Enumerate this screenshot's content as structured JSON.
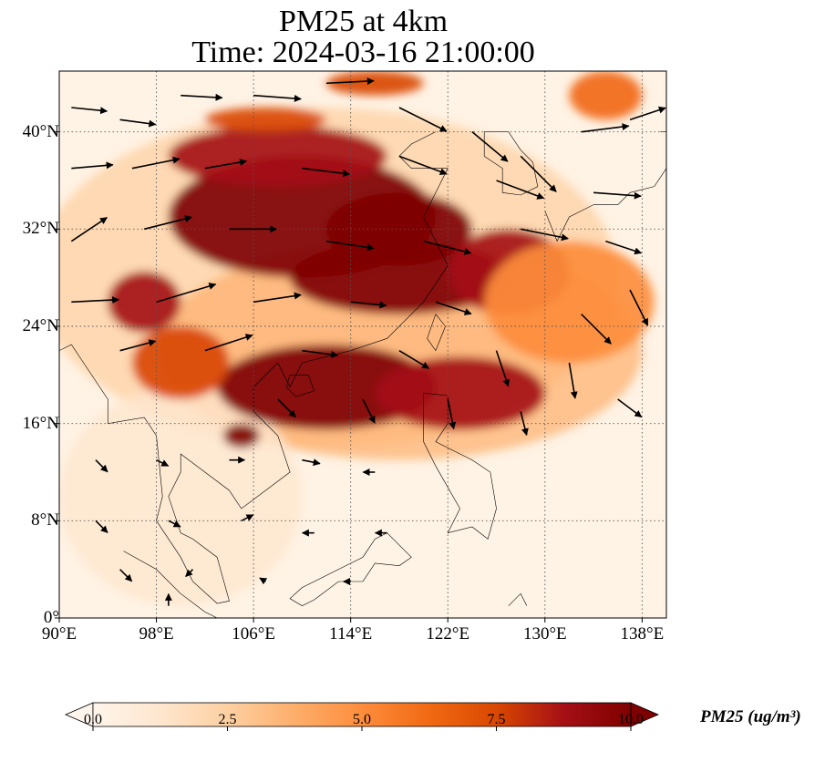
{
  "figure": {
    "title_line1": "PM25 at 4km",
    "title_line2": "Time: 2024-03-16 21:00:00"
  },
  "map": {
    "lon_range": [
      90,
      140
    ],
    "lat_range": [
      0,
      45
    ],
    "lon_ticks": [
      {
        "value": 90,
        "label": "90°E"
      },
      {
        "value": 98,
        "label": "98°E"
      },
      {
        "value": 106,
        "label": "106°E"
      },
      {
        "value": 114,
        "label": "114°E"
      },
      {
        "value": 122,
        "label": "122°E"
      },
      {
        "value": 130,
        "label": "130°E"
      },
      {
        "value": 138,
        "label": "138°E"
      }
    ],
    "lat_ticks": [
      {
        "value": 0,
        "label": "0°"
      },
      {
        "value": 8,
        "label": "8°N"
      },
      {
        "value": 16,
        "label": "16°N"
      },
      {
        "value": 24,
        "label": "24°N"
      },
      {
        "value": 32,
        "label": "32°N"
      },
      {
        "value": 40,
        "label": "40°N"
      }
    ],
    "gridlines": "dotted",
    "field": "PM25",
    "pollution_blobs": [
      {
        "lon": 110,
        "lat": 33,
        "rx": 11,
        "ry": 5,
        "level": 10
      },
      {
        "lon": 118,
        "lat": 32,
        "rx": 6,
        "ry": 3,
        "level": 10
      },
      {
        "lon": 108,
        "lat": 38,
        "rx": 9,
        "ry": 2.5,
        "level": 9
      },
      {
        "lon": 118,
        "lat": 28,
        "rx": 9,
        "ry": 3,
        "level": 10
      },
      {
        "lon": 127,
        "lat": 28.5,
        "rx": 5,
        "ry": 3.5,
        "level": 9
      },
      {
        "lon": 112,
        "lat": 19,
        "rx": 9,
        "ry": 3.5,
        "level": 10
      },
      {
        "lon": 123,
        "lat": 18.5,
        "rx": 7,
        "ry": 3,
        "level": 9
      },
      {
        "lon": 97,
        "lat": 26,
        "rx": 3,
        "ry": 2.5,
        "level": 9
      },
      {
        "lon": 105,
        "lat": 15,
        "rx": 1.5,
        "ry": 1,
        "level": 10
      },
      {
        "lon": 100,
        "lat": 21,
        "rx": 4,
        "ry": 3,
        "level": 8
      },
      {
        "lon": 132,
        "lat": 26,
        "rx": 7,
        "ry": 5,
        "level": 5
      },
      {
        "lon": 107,
        "lat": 41,
        "rx": 5,
        "ry": 1,
        "level": 8
      },
      {
        "lon": 116,
        "lat": 44,
        "rx": 4,
        "ry": 1,
        "level": 7
      },
      {
        "lon": 135,
        "lat": 43,
        "rx": 3,
        "ry": 2,
        "level": 6
      }
    ],
    "wind_vectors": [
      {
        "lon": 91,
        "lat": 42,
        "u": 3,
        "v": -0.3
      },
      {
        "lon": 95,
        "lat": 41,
        "u": 3,
        "v": -0.4
      },
      {
        "lon": 100,
        "lat": 43,
        "u": 3.5,
        "v": -0.2
      },
      {
        "lon": 106,
        "lat": 43,
        "u": 4,
        "v": -0.3
      },
      {
        "lon": 112,
        "lat": 44,
        "u": 4,
        "v": 0.2
      },
      {
        "lon": 118,
        "lat": 42,
        "u": 4,
        "v": -2
      },
      {
        "lon": 124,
        "lat": 40,
        "u": 3,
        "v": -2.5
      },
      {
        "lon": 128,
        "lat": 38,
        "u": 3,
        "v": -3
      },
      {
        "lon": 133,
        "lat": 40,
        "u": 4,
        "v": 0.5
      },
      {
        "lon": 137,
        "lat": 41,
        "u": 3,
        "v": 1
      },
      {
        "lon": 91,
        "lat": 37,
        "u": 3.5,
        "v": 0.3
      },
      {
        "lon": 96,
        "lat": 37,
        "u": 4,
        "v": 0.8
      },
      {
        "lon": 102,
        "lat": 37,
        "u": 3.5,
        "v": 0.6
      },
      {
        "lon": 110,
        "lat": 37,
        "u": 4,
        "v": -0.5
      },
      {
        "lon": 118,
        "lat": 38,
        "u": 4,
        "v": -1.5
      },
      {
        "lon": 126,
        "lat": 36,
        "u": 4,
        "v": -1.5
      },
      {
        "lon": 134,
        "lat": 35,
        "u": 4,
        "v": -0.3
      },
      {
        "lon": 91,
        "lat": 31,
        "u": 3,
        "v": 2
      },
      {
        "lon": 97,
        "lat": 32,
        "u": 4,
        "v": 1
      },
      {
        "lon": 104,
        "lat": 32,
        "u": 4,
        "v": 0
      },
      {
        "lon": 112,
        "lat": 31,
        "u": 4,
        "v": -0.6
      },
      {
        "lon": 120,
        "lat": 31,
        "u": 4,
        "v": -1
      },
      {
        "lon": 128,
        "lat": 32,
        "u": 4,
        "v": -0.8
      },
      {
        "lon": 135,
        "lat": 31,
        "u": 3,
        "v": -1
      },
      {
        "lon": 91,
        "lat": 26,
        "u": 4,
        "v": 0.2
      },
      {
        "lon": 98,
        "lat": 26,
        "u": 5,
        "v": 1.5
      },
      {
        "lon": 106,
        "lat": 26,
        "u": 4,
        "v": 0.6
      },
      {
        "lon": 114,
        "lat": 26,
        "u": 3,
        "v": -0.3
      },
      {
        "lon": 121,
        "lat": 26,
        "u": 3,
        "v": -1
      },
      {
        "lon": 133,
        "lat": 25,
        "u": 2.5,
        "v": -2.5
      },
      {
        "lon": 137,
        "lat": 27,
        "u": 1.5,
        "v": -3
      },
      {
        "lon": 95,
        "lat": 22,
        "u": 3,
        "v": 0.8
      },
      {
        "lon": 102,
        "lat": 22,
        "u": 4,
        "v": 1.3
      },
      {
        "lon": 110,
        "lat": 22,
        "u": 3,
        "v": -0.4
      },
      {
        "lon": 118,
        "lat": 22,
        "u": 2.5,
        "v": -1.5
      },
      {
        "lon": 126,
        "lat": 22,
        "u": 1,
        "v": -3
      },
      {
        "lon": 132,
        "lat": 21,
        "u": 0.5,
        "v": -3
      },
      {
        "lon": 108,
        "lat": 18,
        "u": 1.5,
        "v": -1.5
      },
      {
        "lon": 115,
        "lat": 18,
        "u": 1,
        "v": -2
      },
      {
        "lon": 122,
        "lat": 18,
        "u": 0.5,
        "v": -2.5
      },
      {
        "lon": 128,
        "lat": 17,
        "u": 0.5,
        "v": -2
      },
      {
        "lon": 136,
        "lat": 18,
        "u": 2,
        "v": -1.5
      },
      {
        "lon": 93,
        "lat": 13,
        "u": 1,
        "v": -1
      },
      {
        "lon": 98,
        "lat": 13,
        "u": 1,
        "v": -0.5
      },
      {
        "lon": 104,
        "lat": 13,
        "u": 1.3,
        "v": 0
      },
      {
        "lon": 110,
        "lat": 13,
        "u": 1.5,
        "v": -0.3
      },
      {
        "lon": 116,
        "lat": 12,
        "u": -1,
        "v": 0
      },
      {
        "lon": 93,
        "lat": 8,
        "u": 1,
        "v": -1
      },
      {
        "lon": 99,
        "lat": 8,
        "u": 1,
        "v": -0.5
      },
      {
        "lon": 105,
        "lat": 8,
        "u": 1,
        "v": 0.5
      },
      {
        "lon": 111,
        "lat": 7,
        "u": -1,
        "v": 0
      },
      {
        "lon": 117,
        "lat": 7,
        "u": -1,
        "v": 0
      },
      {
        "lon": 95,
        "lat": 4,
        "u": 1,
        "v": -1
      },
      {
        "lon": 101,
        "lat": 4,
        "u": -0.6,
        "v": -0.6
      },
      {
        "lon": 107,
        "lat": 3,
        "u": -0.5,
        "v": 0.3
      },
      {
        "lon": 114,
        "lat": 3,
        "u": -0.6,
        "v": 0
      },
      {
        "lon": 99,
        "lat": 1,
        "u": 0,
        "v": 1
      }
    ]
  },
  "colorbar": {
    "title": "PM25 (ug/m³)",
    "min": 0,
    "max": 10,
    "extend": "both",
    "ticks": [
      {
        "value": 0,
        "label": "0.0"
      },
      {
        "value": 2.5,
        "label": "2.5"
      },
      {
        "value": 5,
        "label": "5.0"
      },
      {
        "value": 7.5,
        "label": "7.5"
      },
      {
        "value": 10,
        "label": "10.0"
      }
    ],
    "colors": [
      "#fff5eb",
      "#fee6ce",
      "#fdd0a2",
      "#fdae6b",
      "#fd8d3c",
      "#f16913",
      "#d94801",
      "#a50f15",
      "#7f0000"
    ]
  }
}
